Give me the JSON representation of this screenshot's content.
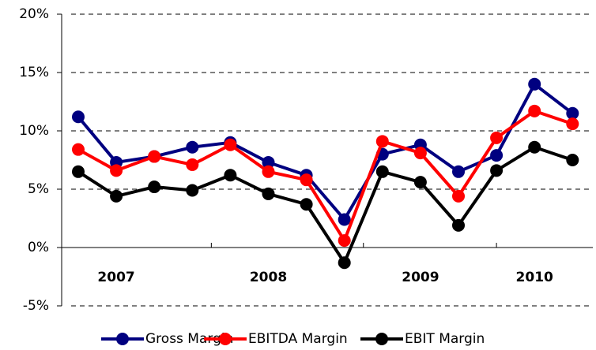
{
  "chart_data": {
    "type": "line",
    "categories": [
      null,
      "2007",
      null,
      null,
      null,
      "2008",
      null,
      null,
      null,
      "2009",
      null,
      null,
      "2010",
      null
    ],
    "series": [
      {
        "name": "Gross Margin",
        "color": "#000080",
        "values": [
          11.2,
          7.3,
          7.8,
          8.6,
          9.0,
          7.3,
          6.2,
          2.4,
          8.0,
          8.8,
          6.5,
          7.9,
          14.0,
          11.5
        ]
      },
      {
        "name": "EBITDA Margin",
        "color": "#ff0000",
        "values": [
          8.4,
          6.6,
          7.8,
          7.1,
          8.8,
          6.5,
          5.8,
          0.6,
          9.1,
          8.1,
          4.4,
          9.4,
          11.7,
          10.6
        ]
      },
      {
        "name": "EBIT Margin",
        "color": "#000000",
        "values": [
          6.5,
          4.4,
          5.2,
          4.9,
          6.2,
          4.6,
          3.7,
          -1.3,
          6.5,
          5.6,
          1.9,
          6.6,
          8.6,
          7.5
        ]
      }
    ],
    "ylim": [
      -5,
      20
    ],
    "yticks": [
      {
        "value": -5,
        "label": "-5%"
      },
      {
        "value": 0,
        "label": "0%"
      },
      {
        "value": 5,
        "label": "5%"
      },
      {
        "value": 10,
        "label": "10%"
      },
      {
        "value": 15,
        "label": "15%"
      },
      {
        "value": 20,
        "label": "20%"
      }
    ],
    "grid": true,
    "legend": "bottom"
  }
}
